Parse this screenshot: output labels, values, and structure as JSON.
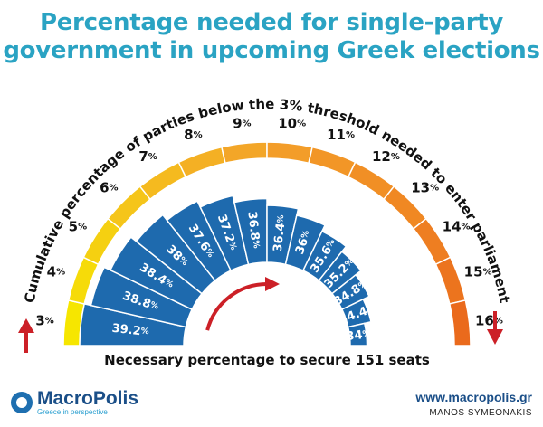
{
  "title_line1": "Percentage needed for single-party",
  "title_line2": "government in upcoming Greek elections",
  "chart_data": {
    "type": "radial-bar",
    "title": "Percentage needed for single-party government in upcoming Greek elections",
    "outer_axis_label": "Cumulative percentage of parties below the 3% threshold needed to enter parliament",
    "inner_axis_label": "Necessary percentage to secure 151 seats",
    "threshold_categories": [
      "3",
      "4",
      "5",
      "6",
      "7",
      "8",
      "9",
      "10",
      "11",
      "12",
      "13",
      "14",
      "15",
      "16"
    ],
    "threshold_unit": "%",
    "values": [
      39.2,
      38.8,
      38.4,
      38,
      37.6,
      37.2,
      36.8,
      36.4,
      36,
      35.6,
      35.2,
      34.8,
      34.4,
      34
    ],
    "value_unit": "%",
    "colors": {
      "outer_gradient": [
        "#f6e600",
        "#f5c21c",
        "#f3a12a",
        "#f08a24",
        "#ea6a1c"
      ],
      "bars": "#1e6aae",
      "arrow": "#cc2027"
    }
  },
  "footer": {
    "logo_name": "MacroPolis",
    "logo_tagline": "Greece in perspective",
    "website": "www.macropolis.gr",
    "author": "MANOS SYMEONAKIS"
  }
}
